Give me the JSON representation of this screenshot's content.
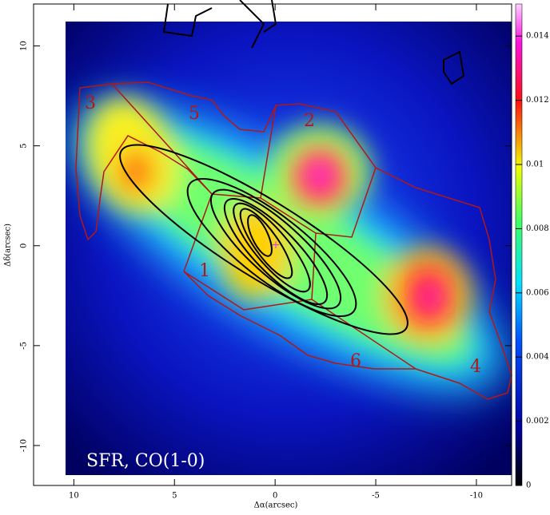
{
  "chart_data": {
    "type": "image",
    "xlabel": "Δα(arcsec)",
    "ylabel": "Δδ(arcsec)",
    "xlim": [
      12,
      -11.75
    ],
    "xticks": [
      10,
      5,
      0,
      -5,
      -10
    ],
    "ylim": [
      -12,
      12.1
    ],
    "yticks": [
      -10,
      -5,
      0,
      5,
      10
    ],
    "clim": [
      0,
      0.015
    ],
    "cticks": [
      0,
      0.002,
      0.004,
      0.006,
      0.008,
      0.01,
      0.012,
      0.014
    ],
    "inset_label": "SFR, CO(1-0)",
    "region_labels": [
      "3",
      "5",
      "2",
      "1",
      "6",
      "4"
    ]
  }
}
